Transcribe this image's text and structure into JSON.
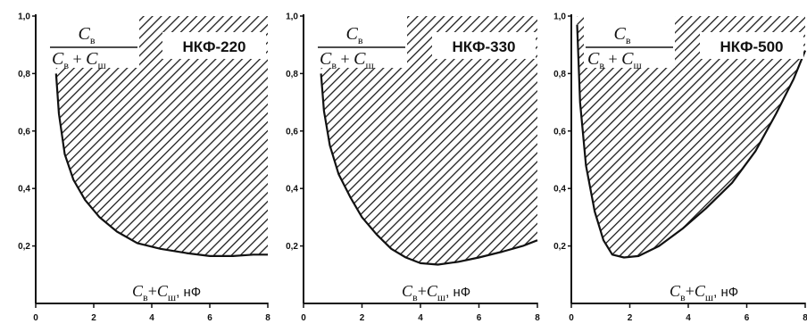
{
  "chart_data": [
    {
      "type": "area",
      "title": "НКФ-220",
      "ylabel": {
        "num": "C",
        "num_sub": "в",
        "den_a": "C",
        "den_a_sub": "в",
        "op": "+",
        "den_b": "C",
        "den_b_sub": "ш"
      },
      "xlabel": {
        "a": "C",
        "a_sub": "в",
        "op": "+",
        "b": "C",
        "b_sub": "ш",
        "unit": ", нФ"
      },
      "xlim": [
        0,
        8
      ],
      "ylim": [
        0,
        1.0
      ],
      "x_ticks": [
        "0",
        "2",
        "4",
        "6",
        "8"
      ],
      "y_ticks": [
        "0,2",
        "0,4",
        "0,6",
        "0,8",
        "1,0"
      ],
      "region": "hatched area above boundary curve",
      "boundary": {
        "x": [
          0.7,
          0.8,
          1.0,
          1.3,
          1.7,
          2.2,
          2.8,
          3.5,
          4.3,
          5.2,
          6.0,
          6.8,
          7.5,
          8.0
        ],
        "y": [
          0.8,
          0.66,
          0.52,
          0.43,
          0.36,
          0.3,
          0.25,
          0.21,
          0.19,
          0.175,
          0.165,
          0.165,
          0.17,
          0.17
        ]
      }
    },
    {
      "type": "area",
      "title": "НКФ-330",
      "ylabel": {
        "num": "C",
        "num_sub": "в",
        "den_a": "C",
        "den_a_sub": "в",
        "op": "+",
        "den_b": "C",
        "den_b_sub": "ш"
      },
      "xlabel": {
        "a": "C",
        "a_sub": "в",
        "op": "+",
        "b": "C",
        "b_sub": "ш",
        "unit": ", нФ"
      },
      "xlim": [
        0,
        8
      ],
      "ylim": [
        0,
        1.0
      ],
      "x_ticks": [
        "0",
        "2",
        "4",
        "6",
        "8"
      ],
      "y_ticks": [
        "0,2",
        "0,4",
        "0,6",
        "0,8",
        "1,0"
      ],
      "region": "hatched area above boundary curve",
      "boundary": {
        "x": [
          0.6,
          0.7,
          0.9,
          1.2,
          1.6,
          2.0,
          2.5,
          3.0,
          3.5,
          4.0,
          4.6,
          5.3,
          6.0,
          6.8,
          7.5,
          8.0
        ],
        "y": [
          0.8,
          0.67,
          0.55,
          0.45,
          0.37,
          0.3,
          0.24,
          0.19,
          0.16,
          0.14,
          0.135,
          0.145,
          0.16,
          0.18,
          0.2,
          0.22
        ]
      }
    },
    {
      "type": "area",
      "title": "НКФ-500",
      "ylabel": {
        "num": "C",
        "num_sub": "в",
        "den_a": "C",
        "den_a_sub": "в",
        "op": "+",
        "den_b": "C",
        "den_b_sub": "ш"
      },
      "xlabel": {
        "a": "C",
        "a_sub": "в",
        "op": "+",
        "b": "C",
        "b_sub": "ш",
        "unit": ", нФ"
      },
      "xlim": [
        0,
        8
      ],
      "ylim": [
        0,
        1.0
      ],
      "x_ticks": [
        "0",
        "2",
        "4",
        "6",
        "8"
      ],
      "y_ticks": [
        "0,2",
        "0,4",
        "0,6",
        "0,8",
        "1,0"
      ],
      "region": "hatched area above boundary curve",
      "boundary": {
        "x": [
          0.2,
          0.3,
          0.5,
          0.8,
          1.1,
          1.4,
          1.8,
          2.3,
          3.0,
          3.8,
          4.6,
          5.5,
          6.3,
          7.0,
          7.6,
          8.0
        ],
        "y": [
          0.97,
          0.7,
          0.48,
          0.32,
          0.22,
          0.17,
          0.16,
          0.165,
          0.2,
          0.26,
          0.33,
          0.42,
          0.53,
          0.66,
          0.78,
          0.88
        ]
      }
    }
  ],
  "colors": {
    "ink": "#111111",
    "hatch": "#222222",
    "background": "#ffffff"
  }
}
